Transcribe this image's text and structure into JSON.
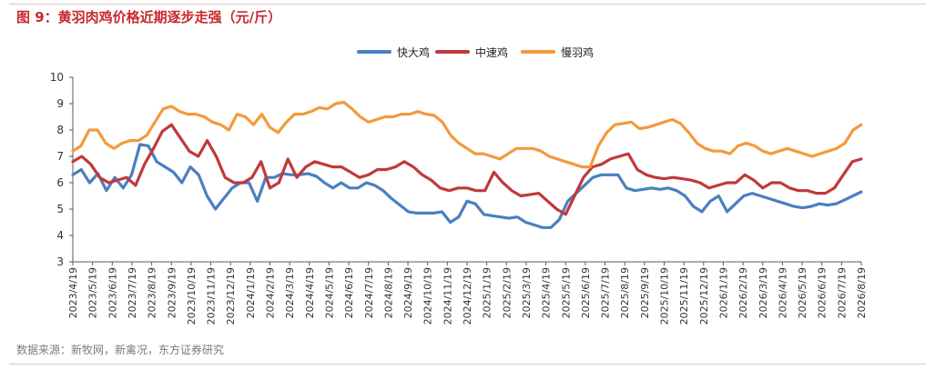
{
  "figure": {
    "title": "图 9：黄羽肉鸡价格近期逐步走强（元/斤）",
    "source": "数据来源：新牧网，新禽况，东方证券研究"
  },
  "colors": {
    "title": "#c8282d",
    "fast": "#4a7fc1",
    "medium": "#c0393b",
    "slow": "#f39a3c",
    "axis": "#595959"
  },
  "chart_data": {
    "type": "line",
    "title": "黄羽肉鸡价格近期逐步走强（元/斤）",
    "xlabel": "",
    "ylabel": "",
    "ylim": [
      3,
      10
    ],
    "yticks": [
      3,
      4,
      5,
      6,
      7,
      8,
      9,
      10
    ],
    "grid": false,
    "legend_position": "top-center",
    "x_tick_labels": [
      "2023/4/19",
      "2023/5/19",
      "2023/6/19",
      "2023/7/19",
      "2023/8/19",
      "2023/9/19",
      "2023/10/19",
      "2023/11/19",
      "2023/12/19",
      "2024/1/19",
      "2024/2/19",
      "2024/3/19",
      "2024/4/19",
      "2024/5/19",
      "2024/6/19",
      "2024/7/19",
      "2024/8/19",
      "2024/9/19",
      "2024/10/19",
      "2024/11/19",
      "2024/12/19",
      "2025/1/19",
      "2025/2/19",
      "2025/3/19",
      "2025/4/19",
      "2025/5/19",
      "2025/6/19",
      "2025/7/19",
      "2025/8/19",
      "2025/9/19",
      "2025/10/19",
      "2025/11/19",
      "2025/12/19",
      "2026/1/19",
      "2026/2/19",
      "2026/3/19",
      "2026/4/19",
      "2026/5/19",
      "2026/6/19",
      "2026/7/19",
      "2026/8/19"
    ],
    "series": [
      {
        "name": "快大鸡",
        "color": "#4a7fc1",
        "values": [
          6.3,
          6.5,
          6.0,
          6.35,
          5.7,
          6.2,
          5.8,
          6.3,
          7.45,
          7.4,
          6.8,
          6.6,
          6.4,
          6.0,
          6.6,
          6.3,
          5.5,
          5.0,
          5.4,
          5.8,
          6.0,
          6.0,
          5.3,
          6.2,
          6.2,
          6.35,
          6.3,
          6.3,
          6.35,
          6.25,
          6.0,
          5.8,
          6.0,
          5.8,
          5.8,
          6.0,
          5.9,
          5.7,
          5.4,
          5.15,
          4.9,
          4.85,
          4.85,
          4.85,
          4.9,
          4.5,
          4.7,
          5.3,
          5.2,
          4.8,
          4.75,
          4.7,
          4.65,
          4.7,
          4.5,
          4.4,
          4.3,
          4.3,
          4.6,
          5.3,
          5.6,
          5.9,
          6.2,
          6.3,
          6.3,
          6.3,
          5.8,
          5.7,
          5.75,
          5.8,
          5.75,
          5.8,
          5.7,
          5.5,
          5.1,
          4.9,
          5.3,
          5.5,
          4.9,
          5.2,
          5.5,
          5.6,
          5.5,
          5.4,
          5.3,
          5.2,
          5.1,
          5.05,
          5.1,
          5.2,
          5.15,
          5.2,
          5.35,
          5.5,
          5.65
        ]
      },
      {
        "name": "中速鸡",
        "color": "#c0393b",
        "values": [
          6.8,
          7.0,
          6.7,
          6.2,
          6.0,
          6.1,
          6.2,
          5.9,
          6.7,
          7.3,
          7.95,
          8.2,
          7.7,
          7.2,
          7.0,
          7.6,
          7.0,
          6.2,
          6.0,
          6.0,
          6.2,
          6.8,
          5.8,
          6.0,
          6.9,
          6.2,
          6.6,
          6.8,
          6.7,
          6.6,
          6.6,
          6.4,
          6.2,
          6.3,
          6.5,
          6.5,
          6.6,
          6.8,
          6.6,
          6.3,
          6.1,
          5.8,
          5.7,
          5.8,
          5.8,
          5.7,
          5.7,
          6.4,
          6.0,
          5.7,
          5.5,
          5.55,
          5.6,
          5.3,
          5.0,
          4.8,
          5.5,
          6.2,
          6.6,
          6.7,
          6.9,
          7.0,
          7.1,
          6.5,
          6.3,
          6.2,
          6.15,
          6.2,
          6.15,
          6.1,
          6.0,
          5.8,
          5.9,
          6.0,
          6.0,
          6.3,
          6.1,
          5.8,
          6.0,
          6.0,
          5.8,
          5.7,
          5.7,
          5.6,
          5.6,
          5.8,
          6.3,
          6.8,
          6.9
        ]
      },
      {
        "name": "慢羽鸡",
        "color": "#f39a3c",
        "values": [
          7.2,
          7.4,
          8.0,
          8.0,
          7.5,
          7.3,
          7.5,
          7.6,
          7.6,
          7.8,
          8.3,
          8.8,
          8.9,
          8.7,
          8.6,
          8.6,
          8.5,
          8.3,
          8.2,
          8.0,
          8.6,
          8.5,
          8.2,
          8.6,
          8.1,
          7.9,
          8.3,
          8.6,
          8.6,
          8.7,
          8.85,
          8.8,
          9.0,
          9.05,
          8.8,
          8.5,
          8.3,
          8.4,
          8.5,
          8.5,
          8.6,
          8.6,
          8.7,
          8.6,
          8.55,
          8.3,
          7.8,
          7.5,
          7.3,
          7.1,
          7.1,
          7.0,
          6.9,
          7.1,
          7.3,
          7.3,
          7.3,
          7.2,
          7.0,
          6.9,
          6.8,
          6.7,
          6.6,
          6.6,
          7.4,
          7.9,
          8.2,
          8.25,
          8.3,
          8.05,
          8.1,
          8.2,
          8.3,
          8.4,
          8.25,
          7.9,
          7.5,
          7.3,
          7.2,
          7.2,
          7.1,
          7.4,
          7.5,
          7.4,
          7.2,
          7.1,
          7.2,
          7.3,
          7.2,
          7.1,
          7.0,
          7.1,
          7.2,
          7.3,
          7.5,
          8.0,
          8.2
        ]
      }
    ]
  }
}
